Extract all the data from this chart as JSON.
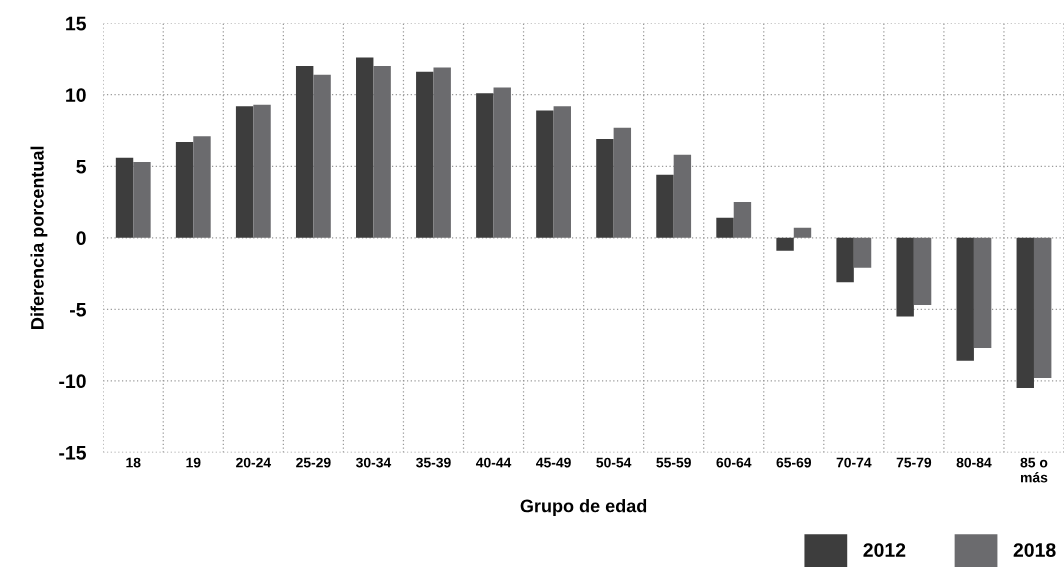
{
  "chart_data": {
    "type": "bar",
    "xlabel": "Grupo de edad",
    "ylabel": "Diferencia porcentual",
    "categories": [
      "18",
      "19",
      "20-24",
      "25-29",
      "30-34",
      "35-39",
      "40-44",
      "45-49",
      "50-54",
      "55-59",
      "60-64",
      "65-69",
      "70-74",
      "75-79",
      "80-84",
      "85 o\nmás"
    ],
    "series": [
      {
        "name": "2012",
        "color": "#3d3d3d",
        "values": [
          5.6,
          6.7,
          9.2,
          12.0,
          12.6,
          11.6,
          10.1,
          8.9,
          6.9,
          4.4,
          1.4,
          -0.9,
          -3.1,
          -5.5,
          -8.6,
          -10.5
        ]
      },
      {
        "name": "2018",
        "color": "#6b6b6e",
        "values": [
          5.3,
          7.1,
          9.3,
          11.4,
          12.0,
          11.9,
          10.5,
          9.2,
          7.7,
          5.8,
          2.5,
          0.7,
          -2.1,
          -4.7,
          -7.7,
          -9.8
        ]
      }
    ],
    "ylim": [
      -15,
      15
    ],
    "yticks": [
      -15,
      -10,
      -5,
      0,
      5,
      10,
      15
    ],
    "grid": true,
    "legend": "bottom right"
  }
}
